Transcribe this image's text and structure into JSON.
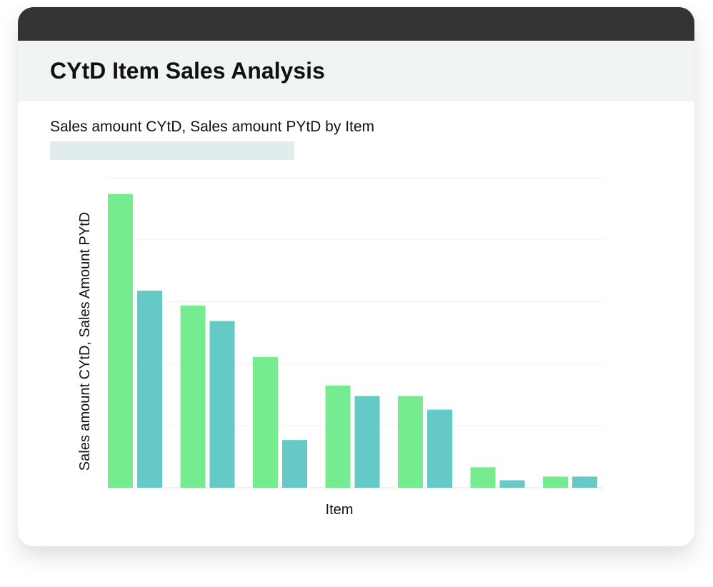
{
  "card": {
    "title": "CYtD Item Sales Analysis"
  },
  "chart_data": {
    "type": "bar",
    "title": "Sales amount CYtD, Sales amount PYtD by Item",
    "xlabel": "Item",
    "ylabel": "Sales amount CYtD, Sales Amount PYtD",
    "categories": [
      "",
      "",
      "",
      "",
      "",
      "",
      ""
    ],
    "series": [
      {
        "name": "Sales amount CYtD",
        "color": "#76eb8f",
        "values": [
          4.74,
          2.94,
          2.11,
          1.65,
          1.48,
          0.33,
          0.18
        ]
      },
      {
        "name": "Sales Amount PYtD",
        "color": "#65cac6",
        "values": [
          3.18,
          2.69,
          0.77,
          1.48,
          1.26,
          0.12,
          0.18
        ]
      }
    ],
    "ylim": [
      0,
      5
    ],
    "grid": true,
    "legend": "none"
  }
}
